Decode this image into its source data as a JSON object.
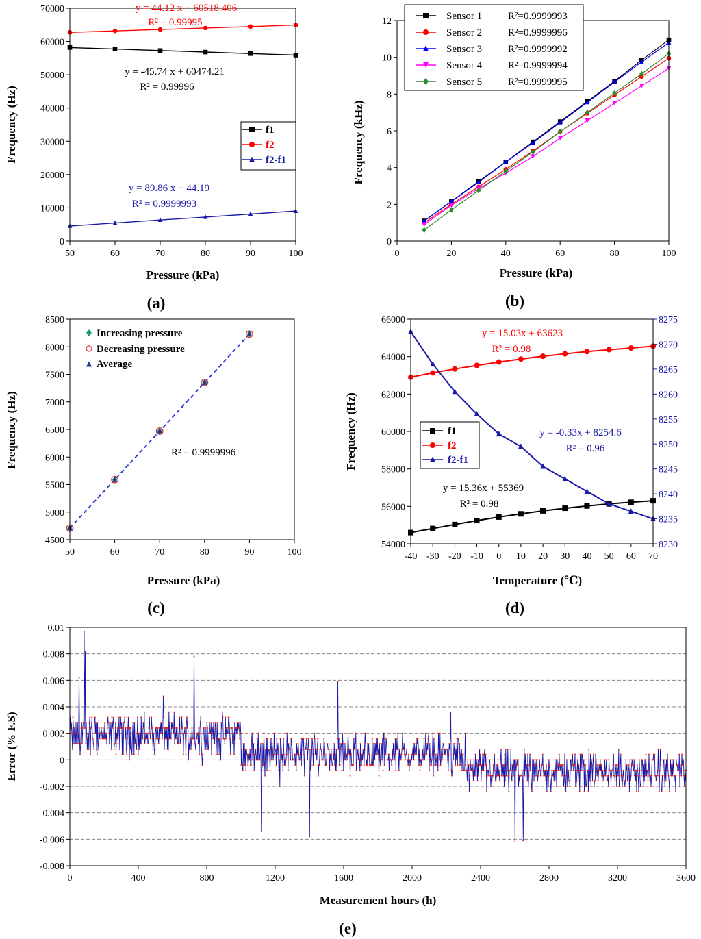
{
  "chart_data": [
    {
      "id": "a",
      "type": "line",
      "panel_label": "(a)",
      "xlabel": "Pressure (kPa)",
      "ylabel": "Frequency (Hz)",
      "xlim": [
        50,
        100
      ],
      "ylim": [
        0,
        70000
      ],
      "xticks": [
        "50",
        "60",
        "70",
        "80",
        "90",
        "100"
      ],
      "yticks": [
        "0",
        "10000",
        "20000",
        "30000",
        "40000",
        "50000",
        "60000",
        "70000"
      ],
      "x": [
        50,
        60,
        70,
        80,
        90,
        100
      ],
      "series": [
        {
          "name": "f1",
          "color": "#000000",
          "marker": "square",
          "values": [
            58187,
            57730,
            57272,
            56815,
            56357,
            55900
          ]
        },
        {
          "name": "f2",
          "color": "#ff0000",
          "marker": "circle",
          "values": [
            62724,
            63165,
            63607,
            64048,
            64489,
            64930
          ]
        },
        {
          "name": "f2-f1",
          "color": "#1a1aa8",
          "marker": "triangle",
          "values": [
            4537,
            5436,
            6334,
            7233,
            8131,
            9030
          ]
        }
      ],
      "annotations": [
        {
          "text": "y = 44.12 x + 60518.406",
          "color": "#ff0000"
        },
        {
          "text": "R² = 0.99995",
          "color": "#ff0000"
        },
        {
          "text": "y = -45.74 x + 60474.21",
          "color": "#000000"
        },
        {
          "text": "R² = 0.99996",
          "color": "#000000"
        },
        {
          "text": "y = 89.86 x + 44.19",
          "color": "#1a1aa8"
        },
        {
          "text": "R² = 0.9999993",
          "color": "#1a1aa8"
        }
      ]
    },
    {
      "id": "b",
      "type": "line",
      "panel_label": "(b)",
      "xlabel": "Pressure (kPa)",
      "ylabel": "Frequency (kHz)",
      "xlim": [
        0,
        100
      ],
      "ylim": [
        0,
        12
      ],
      "xticks": [
        "0",
        "20",
        "40",
        "60",
        "80",
        "100"
      ],
      "yticks": [
        "0",
        "2",
        "4",
        "6",
        "8",
        "10",
        "12"
      ],
      "x": [
        10,
        20,
        30,
        40,
        50,
        60,
        70,
        80,
        90,
        100
      ],
      "series": [
        {
          "name": "Sensor 1",
          "r2": "R²=0.9999993",
          "color": "#000000",
          "marker": "square",
          "values": [
            1.1,
            2.16,
            3.25,
            4.31,
            5.4,
            6.5,
            7.6,
            8.7,
            9.85,
            10.95
          ]
        },
        {
          "name": "Sensor 2",
          "r2": "R²=0.9999996",
          "color": "#ff0000",
          "marker": "circle",
          "values": [
            1.0,
            2.0,
            2.95,
            3.9,
            4.9,
            5.95,
            6.95,
            7.95,
            8.95,
            9.95
          ]
        },
        {
          "name": "Sensor 3",
          "r2": "R²=0.9999992",
          "color": "#0000ff",
          "marker": "triangle",
          "values": [
            1.1,
            2.15,
            3.2,
            4.3,
            5.35,
            6.45,
            7.55,
            8.65,
            9.75,
            10.8
          ]
        },
        {
          "name": "Sensor 4",
          "r2": "R²=0.9999994",
          "color": "#ff00ff",
          "marker": "triangle-down",
          "values": [
            0.9,
            1.95,
            2.85,
            3.7,
            4.6,
            5.6,
            6.55,
            7.5,
            8.45,
            9.4
          ]
        },
        {
          "name": "Sensor 5",
          "r2": "R²=0.9999995",
          "color": "#2e8b2e",
          "marker": "diamond",
          "values": [
            0.6,
            1.7,
            2.75,
            3.8,
            4.85,
            5.95,
            7.0,
            8.05,
            9.1,
            10.2
          ]
        }
      ]
    },
    {
      "id": "c",
      "type": "scatter",
      "panel_label": "(c)",
      "xlabel": "Pressure (kPa)",
      "ylabel": "Frequency (Hz)",
      "xlim": [
        50,
        100
      ],
      "ylim": [
        4500,
        8500
      ],
      "xticks": [
        "50",
        "60",
        "70",
        "80",
        "90",
        "100"
      ],
      "yticks": [
        "4500",
        "5000",
        "5500",
        "6000",
        "6500",
        "7000",
        "7500",
        "8000",
        "8500"
      ],
      "x": [
        50,
        60,
        70,
        80,
        90
      ],
      "series": [
        {
          "name": "Increasing pressure",
          "color": "#1a9a7a",
          "marker": "diamond",
          "values": [
            4710,
            5590,
            6470,
            7350,
            8230
          ]
        },
        {
          "name": "Decreasing pressure",
          "color": "#e03030",
          "marker": "open-circle",
          "values": [
            4710,
            5590,
            6470,
            7350,
            8230
          ]
        },
        {
          "name": "Average",
          "color": "#1f3a8a",
          "marker": "triangle",
          "values": [
            4710,
            5590,
            6470,
            7350,
            8230
          ]
        }
      ],
      "fit_line": {
        "style": "dashed",
        "color": "#1f2fcf",
        "x": [
          50,
          90
        ],
        "y": [
          4710,
          8230
        ]
      },
      "annotations": [
        {
          "text": "R² = 0.9999996",
          "color": "#000000"
        }
      ]
    },
    {
      "id": "d",
      "type": "line",
      "panel_label": "(d)",
      "xlabel": "Temperature (℃)",
      "ylabel": "Frequency (Hz)",
      "xlim": [
        -40,
        70
      ],
      "ylim": [
        54000,
        66000
      ],
      "y2lim": [
        8230,
        8275
      ],
      "xticks": [
        "-40",
        "-30",
        "-20",
        "-10",
        "0",
        "10",
        "20",
        "30",
        "40",
        "50",
        "60",
        "70"
      ],
      "yticks": [
        "54000",
        "56000",
        "58000",
        "60000",
        "62000",
        "64000",
        "66000"
      ],
      "y2ticks": [
        "8230",
        "8235",
        "8240",
        "8245",
        "8250",
        "8255",
        "8260",
        "8265",
        "8270",
        "8275"
      ],
      "x": [
        -40,
        -30,
        -20,
        -10,
        0,
        10,
        20,
        30,
        40,
        50,
        60,
        70
      ],
      "series": [
        {
          "name": "f1",
          "axis": "left",
          "color": "#000000",
          "marker": "square",
          "values": [
            54600,
            54820,
            55030,
            55240,
            55430,
            55600,
            55760,
            55900,
            56020,
            56130,
            56220,
            56300
          ]
        },
        {
          "name": "f2",
          "axis": "left",
          "color": "#ff0000",
          "marker": "circle",
          "values": [
            62900,
            63130,
            63340,
            63530,
            63710,
            63870,
            64020,
            64150,
            64270,
            64370,
            64460,
            64560
          ]
        },
        {
          "name": "f2-f1",
          "axis": "right",
          "color": "#1a1aa8",
          "marker": "triangle",
          "values": [
            8272.5,
            8266,
            8260.5,
            8256,
            8252,
            8249.5,
            8245.5,
            8243,
            8240.5,
            8238,
            8236.5,
            8235
          ]
        }
      ],
      "annotations": [
        {
          "text": "y = 15.03x + 63623",
          "color": "#ff0000"
        },
        {
          "text": "R² = 0.98",
          "color": "#ff0000"
        },
        {
          "text": "y = -0.33x + 8254.6",
          "color": "#1a1aa8"
        },
        {
          "text": "R² = 0.96",
          "color": "#1a1aa8"
        },
        {
          "text": "y = 15.36x + 55369",
          "color": "#000000"
        },
        {
          "text": "R² = 0.98",
          "color": "#000000"
        }
      ]
    },
    {
      "id": "e",
      "type": "line",
      "panel_label": "(e)",
      "xlabel": "Measurement hours (h)",
      "ylabel": "Error (% F.S)",
      "xlim": [
        0,
        3600
      ],
      "ylim": [
        -0.008,
        0.01
      ],
      "xticks": [
        "0",
        "400",
        "800",
        "1200",
        "1600",
        "2000",
        "2400",
        "2800",
        "3200",
        "3600"
      ],
      "yticks": [
        "-0.008",
        "-0.006",
        "-0.004",
        "-0.002",
        "0",
        "0.002",
        "0.004",
        "0.006",
        "0.008",
        "0.01"
      ],
      "grid": "horizontal dashed",
      "series": [
        {
          "name": "Error",
          "color": "#1a1aa8",
          "marker_color": "#e02020",
          "segments": [
            {
              "from": 0,
              "to": 1000,
              "mean": 0.0019,
              "spread": 0.0019
            },
            {
              "from": 1000,
              "to": 2300,
              "mean": 0.0005,
              "spread": 0.0018
            },
            {
              "from": 2300,
              "to": 3600,
              "mean": -0.0009,
              "spread": 0.0018
            }
          ],
          "peaks": [
            [
              85,
              0.0097
            ],
            [
              90,
              0.0082
            ],
            [
              725,
              0.0078
            ],
            [
              55,
              0.0062
            ],
            [
              1565,
              0.0059
            ],
            [
              2600,
              -0.0062
            ],
            [
              2650,
              -0.0061
            ],
            [
              1400,
              -0.0058
            ],
            [
              1120,
              -0.0054
            ]
          ]
        }
      ]
    }
  ]
}
